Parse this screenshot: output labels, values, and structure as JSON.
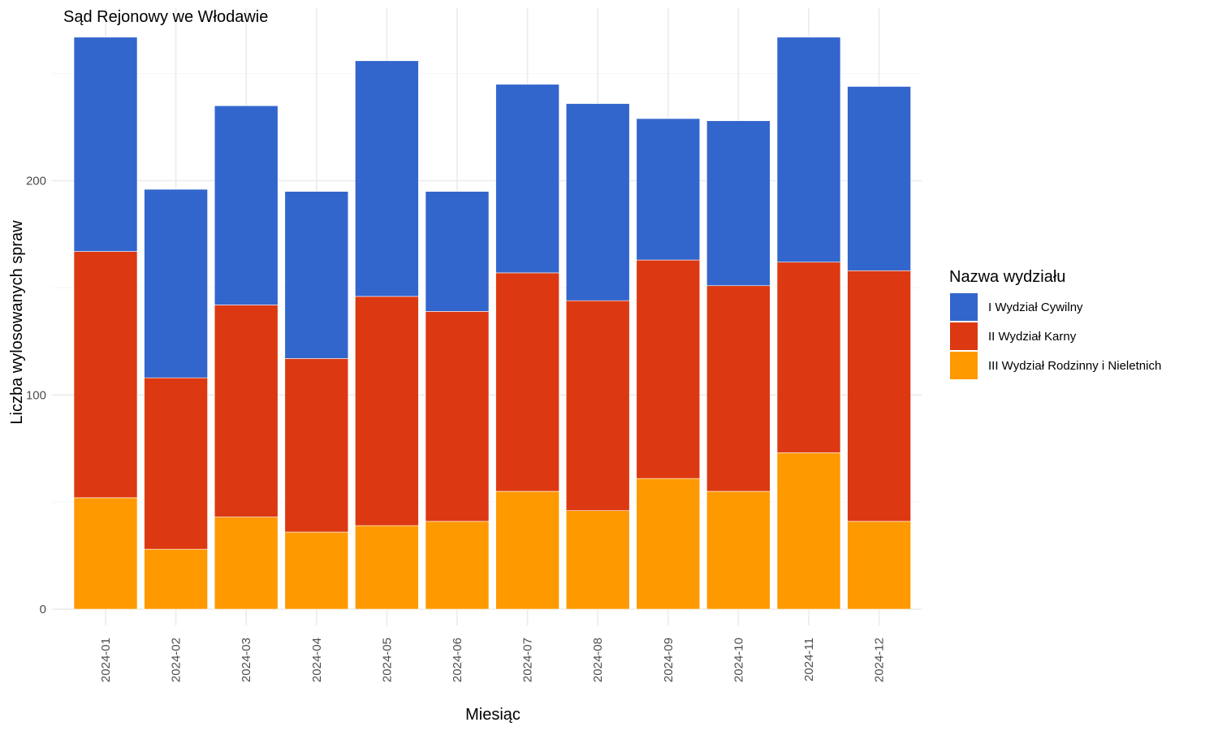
{
  "chart_data": {
    "type": "bar",
    "stacked": true,
    "title": "Sąd Rejonowy we Włodawie",
    "xlabel": "Miesiąc",
    "ylabel": "Liczba wylosowanych spraw",
    "ylim": [
      0,
      280
    ],
    "yticks": [
      0,
      100,
      200
    ],
    "grid": true,
    "legend_title": "Nazwa wydziału",
    "legend_position": "right",
    "categories": [
      "2024-01",
      "2024-02",
      "2024-03",
      "2024-04",
      "2024-05",
      "2024-06",
      "2024-07",
      "2024-08",
      "2024-09",
      "2024-10",
      "2024-11",
      "2024-12"
    ],
    "series": [
      {
        "name": "III Wydział Rodzinny i Nieletnich",
        "color": "#FF9900",
        "values": [
          52,
          28,
          43,
          36,
          39,
          41,
          55,
          46,
          61,
          55,
          73,
          41
        ]
      },
      {
        "name": "II Wydział Karny",
        "color": "#DC3912",
        "values": [
          115,
          80,
          99,
          81,
          107,
          98,
          102,
          98,
          102,
          96,
          89,
          117
        ]
      },
      {
        "name": "I Wydział Cywilny",
        "color": "#3366CC",
        "values": [
          100,
          88,
          93,
          78,
          110,
          56,
          88,
          92,
          66,
          77,
          105,
          86
        ]
      }
    ],
    "legend_order": [
      "I Wydział Cywilny",
      "II Wydział Karny",
      "III Wydział Rodzinny i Nieletnich"
    ]
  }
}
